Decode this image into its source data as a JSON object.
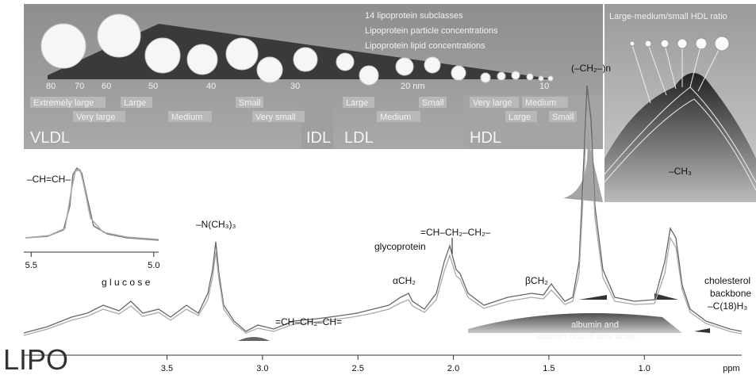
{
  "panel": {
    "header_lines": [
      "14 lipoprotein subclasses",
      "Lipoprotein particle concentrations",
      "Lipoprotein lipid concentrations"
    ],
    "sizes": [
      "80",
      "70",
      "60",
      "50",
      "40",
      "30",
      "20 nm",
      "10"
    ],
    "subclasses": [
      "Extremely large",
      "Very large",
      "Large",
      "Medium",
      "Small",
      "Very small",
      "Large",
      "Medium",
      "Small",
      "Very large",
      "Medium",
      "Large",
      "Small"
    ],
    "classes": [
      "VLDL",
      "IDL",
      "LDL",
      "HDL"
    ],
    "hdl_ratio_title": "Large-medium/small HDL ratio"
  },
  "inset": {
    "label": "–CH=CH–",
    "xlim": [
      5.53,
      4.98
    ],
    "xticks": [
      5.5,
      {
        "value": 5,
        "label": "5.0"
      }
    ]
  },
  "spectrum": {
    "xlim": [
      4.25,
      0.49
    ],
    "xticks": [
      3.5,
      {
        "value": 3,
        "label": "3.0"
      },
      2.5,
      {
        "value": 2,
        "label": "2.0"
      },
      1.5,
      {
        "value": 1,
        "label": "1.0"
      }
    ],
    "x_label": "ppm"
  },
  "annotations": {
    "glucose": "g l u c o s e",
    "choline": "–N(CH₃)₃",
    "bisallylic": "=CH–CH₂–CH=",
    "alpha": "αCH₂",
    "glycoprotein": "glycoprotein",
    "allylic": "=CH–CH₂–CH₂–",
    "beta": "βCH₂",
    "methylene": "(–CH₂–)n",
    "methyl": "–CH₃",
    "cholesterol": [
      "cholesterol",
      "backbone",
      "–C(18)H₃"
    ],
    "albumin": [
      "albumin and",
      "albumin-bound fatty acids"
    ]
  },
  "logo": "LIPO"
}
